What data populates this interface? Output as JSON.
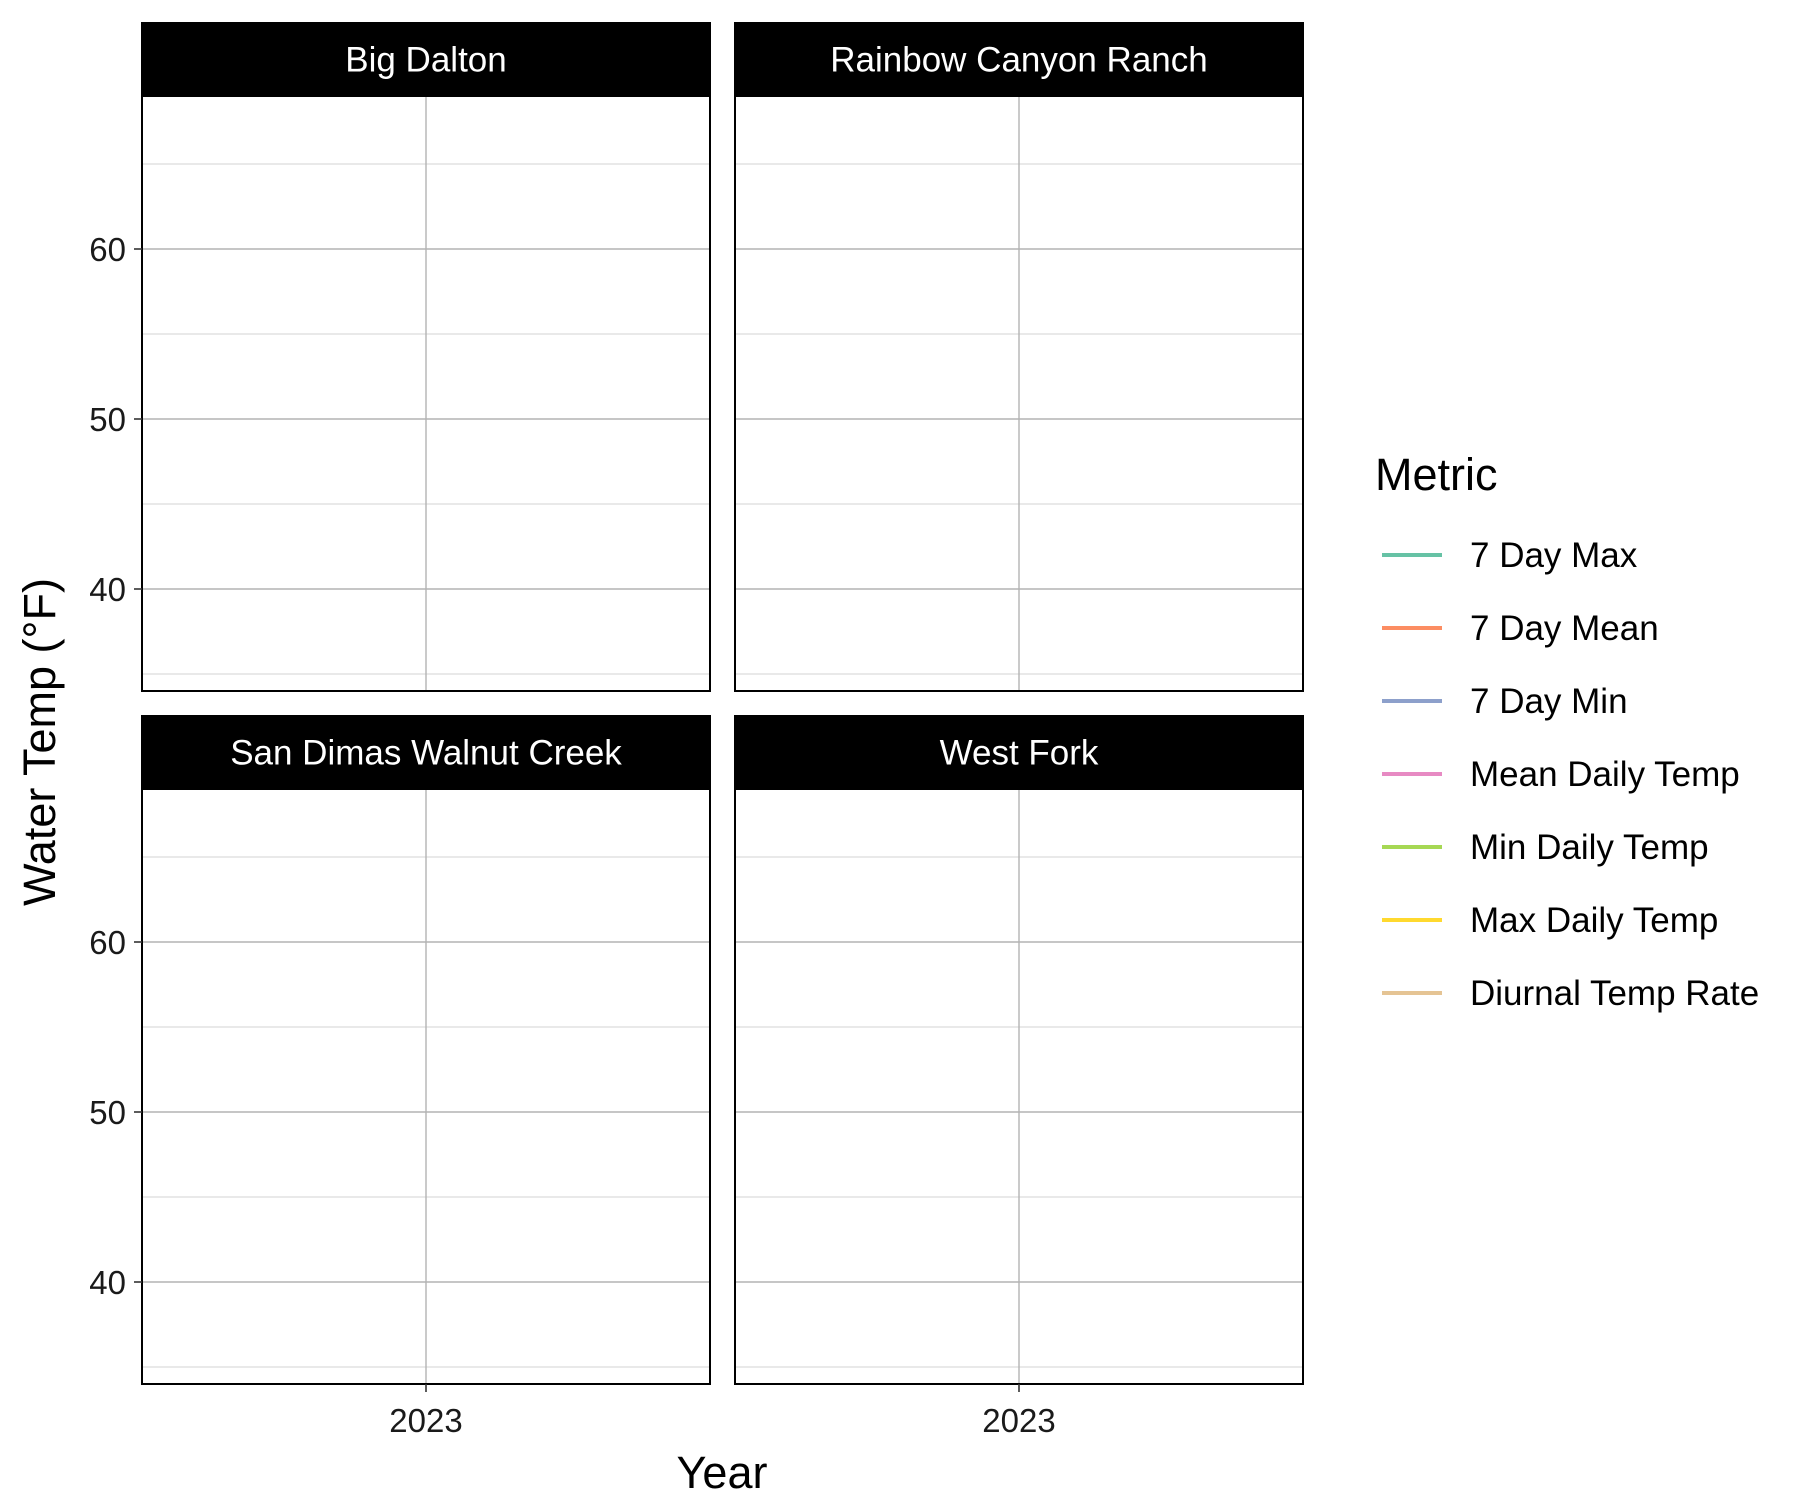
{
  "chart_data": {
    "type": "line",
    "facets": [
      {
        "title": "Big Dalton",
        "series": []
      },
      {
        "title": "Rainbow Canyon Ranch",
        "series": []
      },
      {
        "title": "San Dimas Walnut Creek",
        "series": []
      },
      {
        "title": "West Fork",
        "series": []
      }
    ],
    "xlabel": "Year",
    "ylabel": "Water Temp (°F)",
    "x_ticks": [
      "2023"
    ],
    "y_ticks": [
      40,
      50,
      60
    ],
    "ylim": [
      34,
      69
    ],
    "grid": true,
    "legend": {
      "title": "Metric",
      "placement": "right",
      "entries": [
        {
          "name": "7 Day Max",
          "color": "#66C2A5"
        },
        {
          "name": "7 Day Mean",
          "color": "#FC8D62"
        },
        {
          "name": "7 Day Min",
          "color": "#8DA0CB"
        },
        {
          "name": "Mean Daily Temp",
          "color": "#E78AC3"
        },
        {
          "name": "Min Daily Temp",
          "color": "#A6D854"
        },
        {
          "name": "Max Daily Temp",
          "color": "#FFD92F"
        },
        {
          "name": "Diurnal Temp Rate",
          "color": "#E5C494"
        }
      ]
    }
  }
}
